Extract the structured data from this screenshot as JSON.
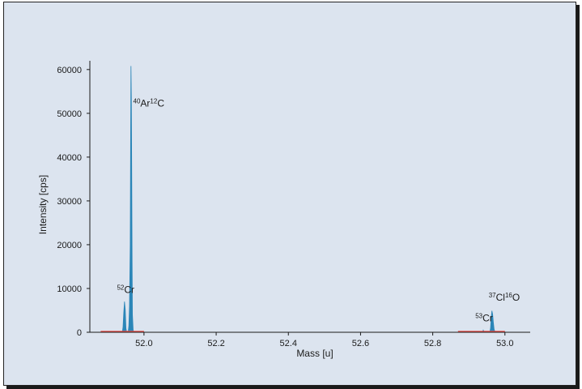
{
  "chart_data": {
    "type": "line",
    "title": "",
    "xlabel": "Mass [u]",
    "ylabel": "Intensity [cps]",
    "xlim": [
      51.85,
      53.07
    ],
    "ylim": [
      0,
      62000
    ],
    "x_ticks": [
      52.0,
      52.2,
      52.4,
      52.6,
      52.8,
      53.0
    ],
    "x_tick_labels": [
      "52.0",
      "52.2",
      "52.4",
      "52.6",
      "52.8",
      "53.0"
    ],
    "y_ticks": [
      0,
      10000,
      20000,
      30000,
      40000,
      50000,
      60000
    ],
    "y_tick_labels": [
      "0",
      "10000",
      "20000",
      "30000",
      "40000",
      "50000",
      "60000"
    ],
    "grid": false,
    "series": [
      {
        "color": "#2b86b8",
        "points": [
          [
            51.92,
            0
          ],
          [
            51.94,
            0
          ],
          [
            51.942,
            1200
          ],
          [
            51.944,
            4500
          ],
          [
            51.946,
            7000
          ],
          [
            51.948,
            5200
          ],
          [
            51.95,
            900
          ],
          [
            51.952,
            0
          ],
          [
            51.956,
            0
          ],
          [
            51.958,
            1500
          ],
          [
            51.96,
            6000
          ],
          [
            51.962,
            20000
          ],
          [
            51.963,
            45000
          ],
          [
            51.964,
            60800
          ],
          [
            51.965,
            53000
          ],
          [
            51.966,
            38000
          ],
          [
            51.967,
            16000
          ],
          [
            51.968,
            4000
          ],
          [
            51.97,
            500
          ],
          [
            51.972,
            0
          ],
          [
            52.0,
            0
          ],
          [
            52.93,
            0
          ],
          [
            52.938,
            0
          ],
          [
            52.94,
            500
          ],
          [
            52.942,
            200
          ],
          [
            52.944,
            0
          ],
          [
            52.958,
            0
          ],
          [
            52.96,
            900
          ],
          [
            52.962,
            3200
          ],
          [
            52.964,
            4900
          ],
          [
            52.966,
            4100
          ],
          [
            52.968,
            2200
          ],
          [
            52.97,
            700
          ],
          [
            52.973,
            0
          ],
          [
            53.0,
            0
          ]
        ]
      },
      {
        "color": "#e8504a",
        "segments": [
          [
            51.88,
            52.0
          ],
          [
            52.87,
            53.0
          ]
        ]
      }
    ],
    "annotations": [
      {
        "iso_mass": "40",
        "element": "Ar",
        "iso_mass2": "12",
        "element2": "C",
        "x": 51.97,
        "y": 51500
      },
      {
        "iso_mass": "52",
        "element": "Cr",
        "iso_mass2": "",
        "element2": "",
        "x": 51.925,
        "y": 9000
      },
      {
        "iso_mass": "53",
        "element": "Cr",
        "iso_mass2": "",
        "element2": "",
        "x": 52.918,
        "y": 2500
      },
      {
        "iso_mass": "37",
        "element": "Cl",
        "iso_mass2": "16",
        "element2": "O",
        "x": 52.955,
        "y": 7200
      }
    ]
  }
}
